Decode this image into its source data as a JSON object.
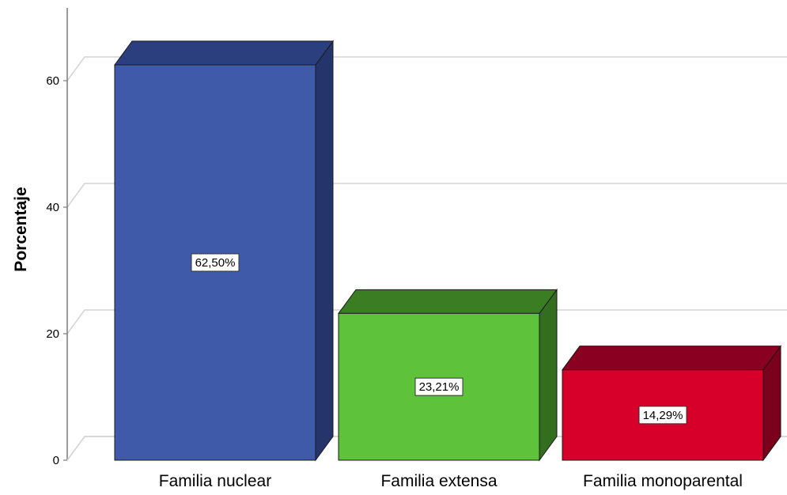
{
  "chart_data": {
    "type": "bar",
    "title": "",
    "xlabel": "",
    "ylabel": "Porcentaje",
    "ylim": [
      0,
      70
    ],
    "yticks": [
      0,
      20,
      40,
      60
    ],
    "grid": true,
    "style": "3d",
    "categories": [
      "Familia nuclear",
      "Familia extensa",
      "Familia monoparental"
    ],
    "values": [
      62.5,
      23.21,
      14.29
    ],
    "data_labels": [
      "62,50%",
      "23,21%",
      "14,29%"
    ],
    "colors": [
      {
        "front": "#3f5aa8",
        "top": "#2b3f7f",
        "side": "#25356b"
      },
      {
        "front": "#5ec23a",
        "top": "#3b7d23",
        "side": "#336e1f"
      },
      {
        "front": "#d7002b",
        "top": "#8a0020",
        "side": "#7a001c"
      }
    ]
  }
}
